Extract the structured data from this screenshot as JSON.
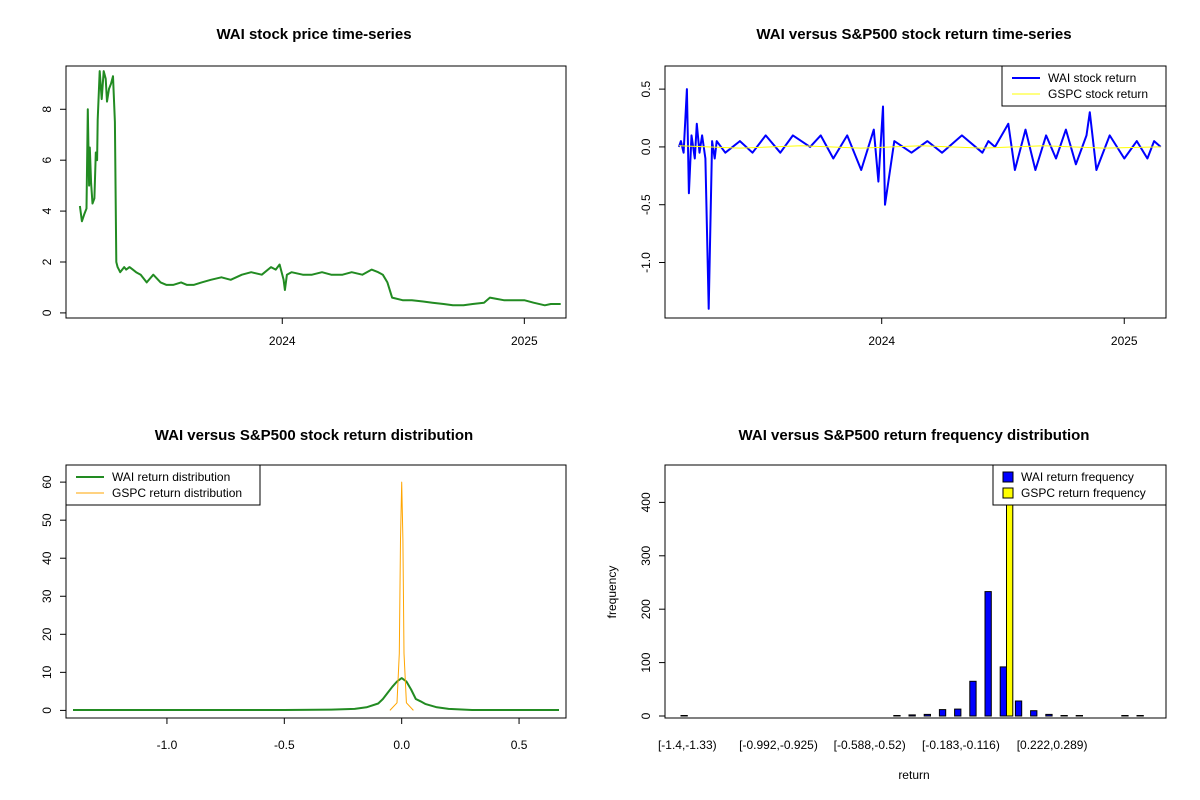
{
  "chart_data": [
    {
      "id": "p1",
      "type": "line",
      "title": "WAI stock price time-series",
      "xlabel": "",
      "ylabel": "",
      "xticks": [
        "2024",
        "2025"
      ],
      "yticks": [
        "0",
        "2",
        "4",
        "6",
        "8"
      ],
      "xlim": [
        "2023-02-08",
        "2025-03-05"
      ],
      "ylim": [
        -0.2,
        9.7
      ],
      "grid": false,
      "series": [
        {
          "color": "#228B22",
          "x": [
            "2023-03-01",
            "2023-03-04",
            "2023-03-08",
            "2023-03-11",
            "2023-03-13",
            "2023-03-15",
            "2023-03-16",
            "2023-03-18",
            "2023-03-20",
            "2023-03-23",
            "2023-03-25",
            "2023-03-27",
            "2023-03-28",
            "2023-03-31",
            "2023-04-03",
            "2023-04-06",
            "2023-04-09",
            "2023-04-11",
            "2023-04-14",
            "2023-04-17",
            "2023-04-20",
            "2023-04-23",
            "2023-04-25",
            "2023-04-27",
            "2023-04-29",
            "2023-05-01",
            "2023-05-04",
            "2023-05-07",
            "2023-05-10",
            "2023-05-15",
            "2023-05-20",
            "2023-05-25",
            "2023-06-01",
            "2023-06-10",
            "2023-06-20",
            "2023-07-01",
            "2023-07-10",
            "2023-07-20",
            "2023-08-01",
            "2023-08-10",
            "2023-08-20",
            "2023-09-01",
            "2023-09-15",
            "2023-10-01",
            "2023-10-15",
            "2023-11-01",
            "2023-11-15",
            "2023-12-01",
            "2023-12-15",
            "2023-12-22",
            "2023-12-28",
            "2024-01-03",
            "2024-01-05",
            "2024-01-08",
            "2024-01-15",
            "2024-02-01",
            "2024-02-15",
            "2024-03-01",
            "2024-03-15",
            "2024-04-01",
            "2024-04-15",
            "2024-05-01",
            "2024-05-15",
            "2024-05-25",
            "2024-06-01",
            "2024-06-08",
            "2024-06-15",
            "2024-07-01",
            "2024-07-15",
            "2024-08-01",
            "2024-08-15",
            "2024-09-01",
            "2024-09-15",
            "2024-10-01",
            "2024-10-15",
            "2024-11-01",
            "2024-11-10",
            "2024-11-20",
            "2024-12-01",
            "2024-12-15",
            "2025-01-01",
            "2025-01-15",
            "2025-02-01",
            "2025-02-10",
            "2025-02-20",
            "2025-02-25"
          ],
          "y": [
            4.2,
            3.6,
            3.9,
            4.1,
            8.0,
            5.0,
            6.5,
            5.1,
            4.3,
            4.5,
            6.3,
            6.0,
            7.6,
            9.5,
            8.4,
            9.5,
            9.2,
            8.3,
            8.8,
            9.0,
            9.3,
            7.5,
            2.0,
            1.8,
            1.7,
            1.6,
            1.7,
            1.8,
            1.7,
            1.8,
            1.7,
            1.6,
            1.5,
            1.2,
            1.5,
            1.2,
            1.1,
            1.1,
            1.2,
            1.1,
            1.1,
            1.2,
            1.3,
            1.4,
            1.3,
            1.5,
            1.6,
            1.5,
            1.8,
            1.7,
            1.9,
            1.3,
            0.9,
            1.5,
            1.6,
            1.5,
            1.5,
            1.6,
            1.5,
            1.5,
            1.6,
            1.5,
            1.7,
            1.6,
            1.5,
            1.2,
            0.6,
            0.5,
            0.5,
            0.45,
            0.4,
            0.35,
            0.3,
            0.3,
            0.35,
            0.4,
            0.6,
            0.55,
            0.5,
            0.5,
            0.5,
            0.4,
            0.3,
            0.35,
            0.35,
            0.35
          ]
        }
      ]
    },
    {
      "id": "p2",
      "type": "line",
      "title": "WAI versus S&P500 stock return time-series",
      "xlabel": "",
      "ylabel": "",
      "xticks": [
        "2024",
        "2025"
      ],
      "yticks": [
        "0.5",
        "0.0",
        "-0.5",
        "-1.0"
      ],
      "xlim": [
        "2023-02-08",
        "2025-03-05"
      ],
      "ylim": [
        -1.48,
        0.7
      ],
      "grid": false,
      "legend": {
        "position": "top-right",
        "entries": [
          "WAI stock return",
          "GSPC stock return"
        ]
      },
      "series": [
        {
          "name": "WAI stock return",
          "color": "#0000FF",
          "x": [
            "2023-03-01",
            "2023-03-04",
            "2023-03-08",
            "2023-03-13",
            "2023-03-16",
            "2023-03-20",
            "2023-03-25",
            "2023-03-28",
            "2023-04-01",
            "2023-04-05",
            "2023-04-10",
            "2023-04-15",
            "2023-04-20",
            "2023-04-24",
            "2023-04-27",
            "2023-05-10",
            "2023-06-01",
            "2023-06-20",
            "2023-07-10",
            "2023-08-01",
            "2023-08-20",
            "2023-09-15",
            "2023-10-01",
            "2023-10-20",
            "2023-11-10",
            "2023-12-01",
            "2023-12-20",
            "2023-12-27",
            "2024-01-03",
            "2024-01-06",
            "2024-01-20",
            "2024-02-15",
            "2024-03-10",
            "2024-04-01",
            "2024-05-01",
            "2024-06-01",
            "2024-06-10",
            "2024-06-20",
            "2024-07-10",
            "2024-07-20",
            "2024-08-05",
            "2024-08-20",
            "2024-09-05",
            "2024-09-20",
            "2024-10-05",
            "2024-10-20",
            "2024-11-05",
            "2024-11-10",
            "2024-11-20",
            "2024-12-10",
            "2025-01-01",
            "2025-01-20",
            "2025-02-05",
            "2025-02-15",
            "2025-02-25"
          ],
          "y": [
            0.0,
            0.05,
            -0.05,
            0.5,
            -0.4,
            0.1,
            -0.1,
            0.2,
            -0.05,
            0.1,
            -0.1,
            -1.4,
            0.05,
            -0.1,
            0.05,
            -0.05,
            0.05,
            -0.05,
            0.1,
            -0.05,
            0.1,
            0.0,
            0.1,
            -0.1,
            0.1,
            -0.2,
            0.15,
            -0.3,
            0.35,
            -0.5,
            0.05,
            -0.05,
            0.05,
            -0.05,
            0.1,
            -0.05,
            0.05,
            0.0,
            0.2,
            -0.2,
            0.15,
            -0.2,
            0.1,
            -0.1,
            0.15,
            -0.15,
            0.1,
            0.3,
            -0.2,
            0.1,
            -0.1,
            0.05,
            -0.1,
            0.05,
            0.0
          ]
        },
        {
          "name": "GSPC stock return",
          "color": "#FFFF00",
          "x": [
            "2023-03-01",
            "2023-06-01",
            "2023-09-01",
            "2023-12-01",
            "2024-03-01",
            "2024-06-01",
            "2024-09-01",
            "2024-12-01",
            "2025-02-25"
          ],
          "y": [
            0.01,
            -0.01,
            0.01,
            -0.01,
            0.01,
            -0.01,
            0.01,
            -0.01,
            0.0
          ]
        }
      ]
    },
    {
      "id": "p3",
      "type": "line",
      "title": "WAI versus S&P500 stock return distribution",
      "xlabel": "",
      "ylabel": "",
      "xticks": [
        "-1.0",
        "-0.5",
        "0.0",
        "0.5"
      ],
      "yticks": [
        "0",
        "10",
        "20",
        "30",
        "40",
        "50",
        "60"
      ],
      "xlim": [
        -1.43,
        0.7
      ],
      "ylim": [
        -2.0,
        64.5
      ],
      "grid": false,
      "legend": {
        "position": "top-left",
        "entries": [
          "WAI return distribution",
          "GSPC return distribution"
        ]
      },
      "series": [
        {
          "name": "WAI return distribution",
          "color": "#228B22",
          "x": [
            -1.4,
            -0.5,
            -0.3,
            -0.2,
            -0.15,
            -0.1,
            -0.08,
            -0.06,
            -0.04,
            -0.02,
            0.0,
            0.02,
            0.04,
            0.06,
            0.08,
            0.1,
            0.15,
            0.2,
            0.3,
            0.5,
            0.67
          ],
          "y": [
            0.1,
            0.1,
            0.2,
            0.4,
            0.8,
            1.8,
            3.0,
            4.6,
            6.2,
            7.6,
            8.5,
            7.6,
            5.5,
            3.0,
            2.4,
            1.7,
            0.8,
            0.4,
            0.1,
            0.1,
            0.1
          ]
        },
        {
          "name": "GSPC return distribution",
          "color": "#FFA500",
          "x": [
            -0.05,
            -0.02,
            -0.01,
            -0.005,
            0.0,
            0.005,
            0.01,
            0.02,
            0.05
          ],
          "y": [
            0.0,
            2.0,
            15.0,
            45.0,
            60.0,
            45.0,
            15.0,
            2.0,
            0.0
          ]
        }
      ]
    },
    {
      "id": "p4",
      "type": "bar",
      "title": "WAI versus S&P500 return frequency distribution",
      "xlabel": "return",
      "ylabel": "frequency",
      "ylim": [
        0,
        470
      ],
      "yticks": [
        "0",
        "100",
        "200",
        "300",
        "400"
      ],
      "grid": false,
      "legend": {
        "position": "top-right",
        "entries": [
          "WAI return frequency",
          "GSPC return frequency"
        ]
      },
      "categories": [
        "[-1.4,-1.33)",
        "[-1.33,-1.26)",
        "[-1.26,-1.2)",
        "[-1.2,-1.13)",
        "[-1.13,-1.06)",
        "[-1.06,-0.992)",
        "[-0.992,-0.925)",
        "[-0.925,-0.857)",
        "[-0.857,-0.79)",
        "[-0.79,-0.722)",
        "[-0.722,-0.655)",
        "[-0.655,-0.588)",
        "[-0.588,-0.52)",
        "[-0.52,-0.453)",
        "[-0.453,-0.386)",
        "[-0.386,-0.318)",
        "[-0.318,-0.251)",
        "[-0.251,-0.183)",
        "[-0.183,-0.116)",
        "[-0.116,-0.0484)",
        "[-0.0484,0.0191)",
        "[0.0191,0.0866)",
        "[0.0866,0.154)",
        "[0.154,0.222)",
        "[0.222,0.289)",
        "[0.289,0.356)",
        "[0.356,0.424)",
        "[0.424,0.491)",
        "[0.491,0.559)",
        "[0.559,0.626)",
        "[0.626,0.694)"
      ],
      "tick_labels": [
        "[-1.4,-1.33)",
        "[-0.992,-0.925)",
        "[-0.588,-0.52)",
        "[-0.183,-0.116)",
        "[0.222,0.289)"
      ],
      "series": [
        {
          "name": "WAI return frequency",
          "color": "#0000FF",
          "values": [
            1,
            0,
            0,
            0,
            0,
            0,
            0,
            0,
            0,
            0,
            0,
            0,
            0,
            0,
            1,
            2,
            3,
            12,
            13,
            65,
            233,
            92,
            28,
            10,
            3,
            1,
            1,
            0,
            0,
            1,
            1
          ]
        },
        {
          "name": "GSPC return frequency",
          "color": "#FFFF00",
          "values": [
            0,
            0,
            0,
            0,
            0,
            0,
            0,
            0,
            0,
            0,
            0,
            0,
            0,
            0,
            0,
            0,
            0,
            0,
            0,
            0,
            0,
            470,
            0,
            0,
            0,
            0,
            0,
            0,
            0,
            0,
            0
          ]
        }
      ]
    }
  ]
}
